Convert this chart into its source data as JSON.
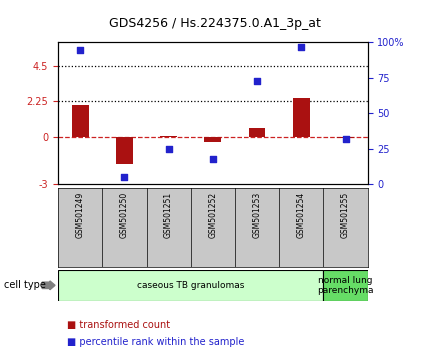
{
  "title": "GDS4256 / Hs.224375.0.A1_3p_at",
  "samples": [
    "GSM501249",
    "GSM501250",
    "GSM501251",
    "GSM501252",
    "GSM501253",
    "GSM501254",
    "GSM501255"
  ],
  "transformed_counts": [
    2.0,
    -1.7,
    0.05,
    -0.3,
    0.55,
    2.5,
    -0.07
  ],
  "percentile_ranks": [
    95,
    5,
    25,
    18,
    73,
    97,
    32
  ],
  "ylim_left": [
    -3,
    6
  ],
  "ylim_right": [
    0,
    100
  ],
  "yticks_left": [
    -3,
    0,
    2.25,
    4.5
  ],
  "yticks_left_labels": [
    "-3",
    "0",
    "2.25",
    "4.5"
  ],
  "yticks_right": [
    0,
    25,
    50,
    75,
    100
  ],
  "yticks_right_labels": [
    "0",
    "25",
    "50",
    "75",
    "100%"
  ],
  "bar_color": "#aa1111",
  "dot_color": "#2222cc",
  "cell_type_label": "cell type",
  "groups": [
    {
      "label": "caseous TB granulomas",
      "samples": [
        0,
        1,
        2,
        3,
        4,
        5
      ],
      "color": "#ccffcc"
    },
    {
      "label": "normal lung\nparenchyma",
      "samples": [
        6
      ],
      "color": "#66dd66"
    }
  ],
  "legend_bar_label": "transformed count",
  "legend_dot_label": "percentile rank within the sample",
  "bg_color": "#c8c8c8",
  "plot_bg": "#ffffff"
}
